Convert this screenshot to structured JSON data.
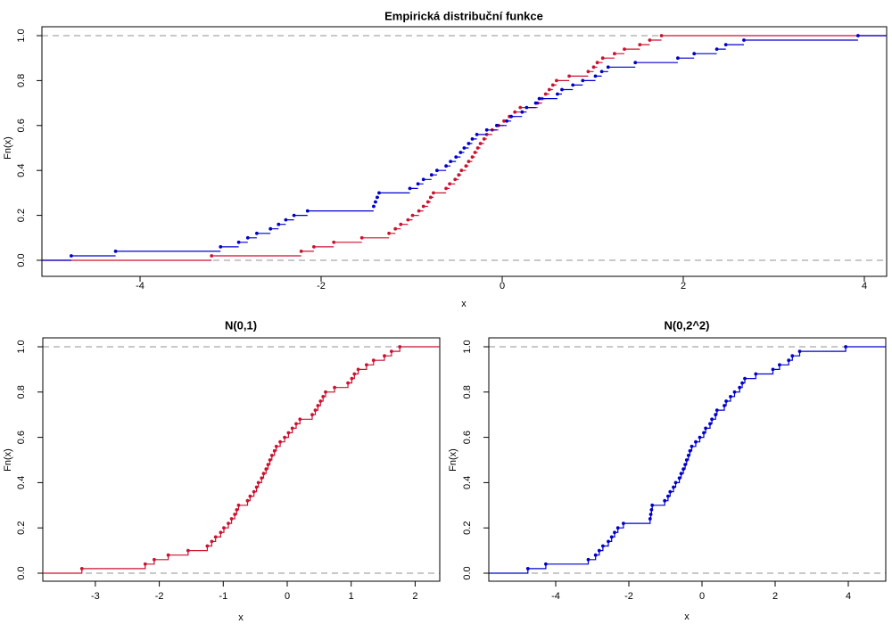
{
  "page": {
    "background": "#ffffff",
    "frame_color": "#000000",
    "text_color": "#000000"
  },
  "chart_data": [
    {
      "id": "combined",
      "type": "line",
      "subtype": "ecdf-step",
      "title": "Empirická distribuční funkce",
      "xlabel": "x",
      "ylabel": "Fn(x)",
      "x_ticks": [
        -4,
        -2,
        0,
        2,
        4
      ],
      "y_ticks": [
        0.0,
        0.2,
        0.4,
        0.6,
        0.8,
        1.0
      ],
      "xlim": [
        -5.1,
        4.25
      ],
      "ylim": [
        -0.04,
        1.04
      ],
      "grid": false,
      "legend": "none",
      "reference_lines": {
        "y": [
          0,
          1
        ],
        "style": "dashed",
        "color": "#909090"
      },
      "verticals": false,
      "show_points": true,
      "series": [
        {
          "name": "N(0,1)",
          "color": "#CC1230",
          "sample_ref": "n01"
        },
        {
          "name": "N(0,2^2)",
          "color": "#0000CD",
          "sample_ref": "n04"
        }
      ]
    },
    {
      "id": "n01-panel",
      "type": "line",
      "subtype": "ecdf-step",
      "title": "N(0,1)",
      "xlabel": "x",
      "ylabel": "Fn(x)",
      "x_ticks": [
        -3,
        -2,
        -1,
        0,
        1,
        2
      ],
      "y_ticks": [
        0.0,
        0.2,
        0.4,
        0.6,
        0.8,
        1.0
      ],
      "xlim": [
        -3.8,
        2.4
      ],
      "ylim": [
        -0.04,
        1.04
      ],
      "grid": false,
      "legend": "none",
      "reference_lines": {
        "y": [
          0,
          1
        ],
        "style": "dashed",
        "color": "#909090"
      },
      "verticals": true,
      "show_points": true,
      "series": [
        {
          "name": "N(0,1)",
          "color": "#CC1230",
          "sample_ref": "n01"
        }
      ]
    },
    {
      "id": "n04-panel",
      "type": "line",
      "subtype": "ecdf-step",
      "title": "N(0,2^2)",
      "xlabel": "x",
      "ylabel": "Fn(x)",
      "x_ticks": [
        -4,
        -2,
        0,
        2,
        4
      ],
      "y_ticks": [
        0.0,
        0.2,
        0.4,
        0.6,
        0.8,
        1.0
      ],
      "xlim": [
        -5.8,
        5.0
      ],
      "ylim": [
        -0.04,
        1.04
      ],
      "grid": false,
      "legend": "none",
      "reference_lines": {
        "y": [
          0,
          1
        ],
        "style": "dashed",
        "color": "#909090"
      },
      "verticals": true,
      "show_points": true,
      "series": [
        {
          "name": "N(0,2^2)",
          "color": "#0000CD",
          "sample_ref": "n04"
        }
      ]
    }
  ],
  "samples": {
    "note": "sorted samples; Fn steps by 1/50 at each value",
    "n01": [
      -3.21,
      -2.22,
      -2.08,
      -1.86,
      -1.55,
      -1.25,
      -1.18,
      -1.12,
      -1.04,
      -0.99,
      -0.92,
      -0.87,
      -0.82,
      -0.79,
      -0.76,
      -0.62,
      -0.58,
      -0.52,
      -0.48,
      -0.45,
      -0.4,
      -0.37,
      -0.33,
      -0.3,
      -0.27,
      -0.24,
      -0.2,
      -0.17,
      -0.11,
      -0.04,
      0.02,
      0.08,
      0.14,
      0.2,
      0.39,
      0.44,
      0.48,
      0.52,
      0.56,
      0.6,
      0.74,
      0.95,
      1.01,
      1.05,
      1.11,
      1.24,
      1.35,
      1.52,
      1.63,
      1.76
    ],
    "n04": [
      -4.76,
      -4.27,
      -3.11,
      -2.91,
      -2.81,
      -2.71,
      -2.56,
      -2.47,
      -2.39,
      -2.3,
      -2.15,
      -1.42,
      -1.4,
      -1.38,
      -1.36,
      -1.02,
      -0.93,
      -0.87,
      -0.78,
      -0.72,
      -0.62,
      -0.57,
      -0.51,
      -0.46,
      -0.42,
      -0.37,
      -0.33,
      -0.28,
      -0.17,
      -0.06,
      0.05,
      0.1,
      0.22,
      0.27,
      0.37,
      0.41,
      0.61,
      0.66,
      0.78,
      0.89,
      1.03,
      1.1,
      1.17,
      1.47,
      1.94,
      2.12,
      2.37,
      2.47,
      2.67,
      3.93
    ]
  }
}
